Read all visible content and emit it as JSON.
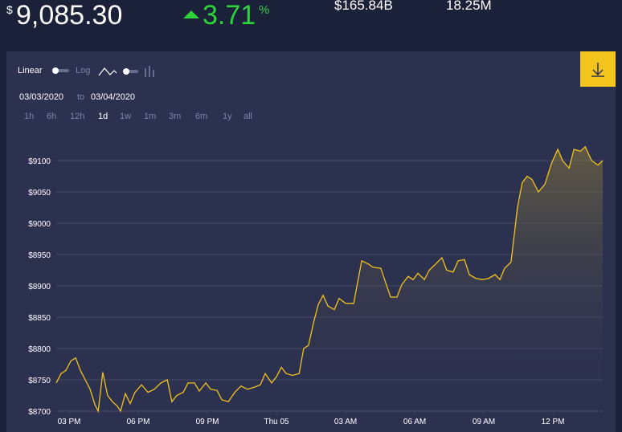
{
  "header": {
    "price_symbol": "$",
    "price": "9,085.30",
    "change": "3.71",
    "change_unit": "%",
    "market_cap": "$165.84B",
    "volume": "18.25M"
  },
  "controls": {
    "scale_linear": "Linear",
    "scale_log": "Log",
    "date_from": "03/03/2020",
    "date_sep": "to",
    "date_to": "03/04/2020",
    "ranges": [
      "1h",
      "6h",
      "12h",
      "1d",
      "1w",
      "1m",
      "3m",
      "6m",
      "1y",
      "all"
    ],
    "active_range": 3
  },
  "chart_data": {
    "type": "line",
    "color": "#f2c31b",
    "grid": true,
    "x": [
      14.44,
      14.65,
      14.86,
      15.07,
      15.28,
      15.49,
      15.7,
      15.91,
      16.12,
      16.26,
      16.46,
      16.67,
      16.88,
      17.09,
      17.23,
      17.44,
      17.65,
      17.86,
      18.14,
      18.42,
      18.7,
      18.98,
      19.26,
      19.46,
      19.67,
      19.95,
      20.16,
      20.44,
      20.65,
      20.93,
      21.14,
      21.42,
      21.63,
      21.91,
      22.19,
      22.46,
      22.74,
      23.02,
      23.3,
      23.51,
      23.79,
      24.0,
      24.21,
      24.42,
      24.7,
      24.98,
      25.18,
      25.39,
      25.6,
      25.81,
      26.02,
      26.23,
      26.51,
      26.72,
      27.0,
      27.35,
      27.7,
      27.98,
      28.18,
      28.53,
      28.74,
      28.95,
      29.23,
      29.44,
      29.72,
      29.93,
      30.14,
      30.42,
      30.63,
      30.91,
      31.18,
      31.39,
      31.67,
      31.88,
      32.16,
      32.37,
      32.65,
      32.93,
      33.21,
      33.49,
      33.7,
      33.9,
      34.18,
      34.46,
      34.67,
      34.88,
      35.09,
      35.37,
      35.65,
      35.93,
      36.21,
      36.42,
      36.7,
      36.91,
      37.19,
      37.4,
      37.68,
      37.95,
      38.16
    ],
    "values": [
      8745,
      8760,
      8765,
      8780,
      8785,
      8765,
      8750,
      8735,
      8710,
      8700,
      8762,
      8725,
      8715,
      8708,
      8700,
      8728,
      8712,
      8730,
      8742,
      8730,
      8735,
      8745,
      8750,
      8715,
      8725,
      8730,
      8745,
      8745,
      8732,
      8745,
      8735,
      8733,
      8718,
      8715,
      8730,
      8740,
      8735,
      8738,
      8742,
      8760,
      8745,
      8755,
      8770,
      8760,
      8757,
      8760,
      8800,
      8805,
      8840,
      8870,
      8885,
      8868,
      8862,
      8880,
      8872,
      8872,
      8940,
      8935,
      8930,
      8928,
      8905,
      8882,
      8882,
      8902,
      8915,
      8910,
      8920,
      8910,
      8925,
      8935,
      8945,
      8925,
      8922,
      8940,
      8942,
      8918,
      8912,
      8910,
      8912,
      8918,
      8910,
      8928,
      8938,
      9025,
      9065,
      9075,
      9070,
      9050,
      9062,
      9095,
      9118,
      9100,
      9088,
      9118,
      9115,
      9122,
      9100,
      9093,
      9100
    ],
    "xlim": [
      14.44,
      38.16
    ],
    "ylim": [
      8700,
      9150
    ],
    "xticks": [
      {
        "value": 15,
        "label": "03 PM"
      },
      {
        "value": 18,
        "label": "06 PM"
      },
      {
        "value": 21,
        "label": "09 PM"
      },
      {
        "value": 24,
        "label": "Thu 05"
      },
      {
        "value": 27,
        "label": "03 AM"
      },
      {
        "value": 30,
        "label": "06 AM"
      },
      {
        "value": 33,
        "label": "09 AM"
      },
      {
        "value": 36,
        "label": "12 PM"
      }
    ],
    "yticks": [
      {
        "value": 8700,
        "label": "$8700"
      },
      {
        "value": 8750,
        "label": "$8750"
      },
      {
        "value": 8800,
        "label": "$8800"
      },
      {
        "value": 8850,
        "label": "$8850"
      },
      {
        "value": 8900,
        "label": "$8900"
      },
      {
        "value": 8950,
        "label": "$8950"
      },
      {
        "value": 9000,
        "label": "$9000"
      },
      {
        "value": 9050,
        "label": "$9050"
      },
      {
        "value": 9100,
        "label": "$9100"
      }
    ]
  }
}
